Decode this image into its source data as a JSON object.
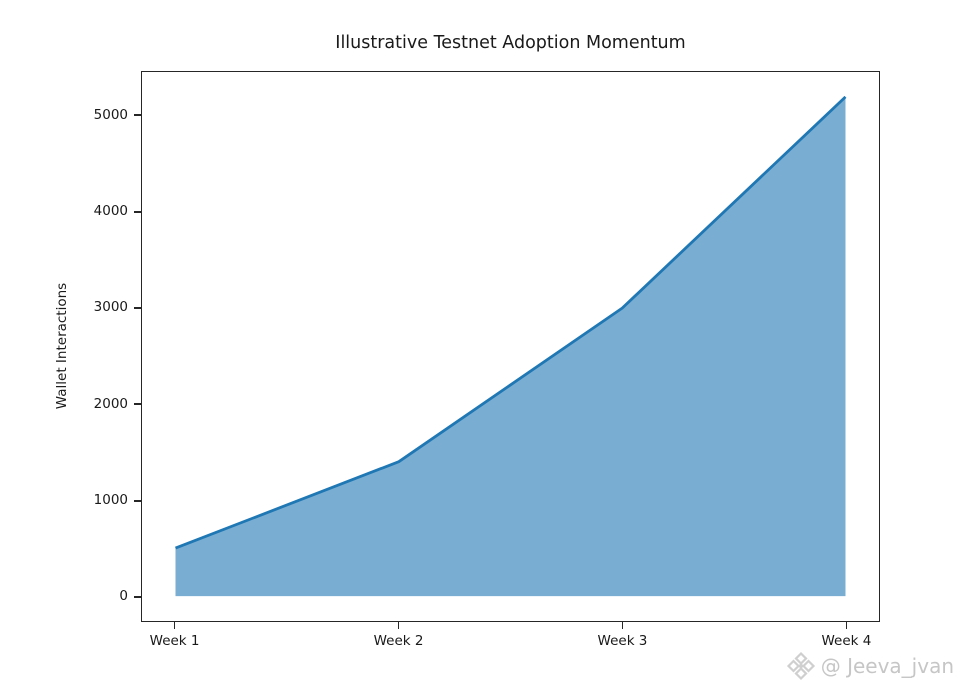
{
  "chart_data": {
    "type": "area",
    "title": "Illustrative Testnet Adoption Momentum",
    "xlabel": "",
    "ylabel": "Wallet Interactions",
    "categories": [
      "Week 1",
      "Week 2",
      "Week 3",
      "Week 4"
    ],
    "values": [
      500,
      1400,
      3000,
      5200
    ],
    "yticks": [
      0,
      1000,
      2000,
      3000,
      4000,
      5000
    ],
    "xlim": [
      -0.15,
      3.15
    ],
    "ylim": [
      -260,
      5460
    ],
    "baseline": 0,
    "grid": false,
    "legend_position": "none",
    "line_color": "#1f77b4",
    "fill_color": "#1f77b4",
    "fill_opacity": 0.6,
    "spine_color": "#262626",
    "text_color": "#1a1a1a"
  },
  "watermark": {
    "text": "@ Jeeva_jvan",
    "icon": "diamond-logo-icon",
    "color": "#c6c6c6"
  }
}
